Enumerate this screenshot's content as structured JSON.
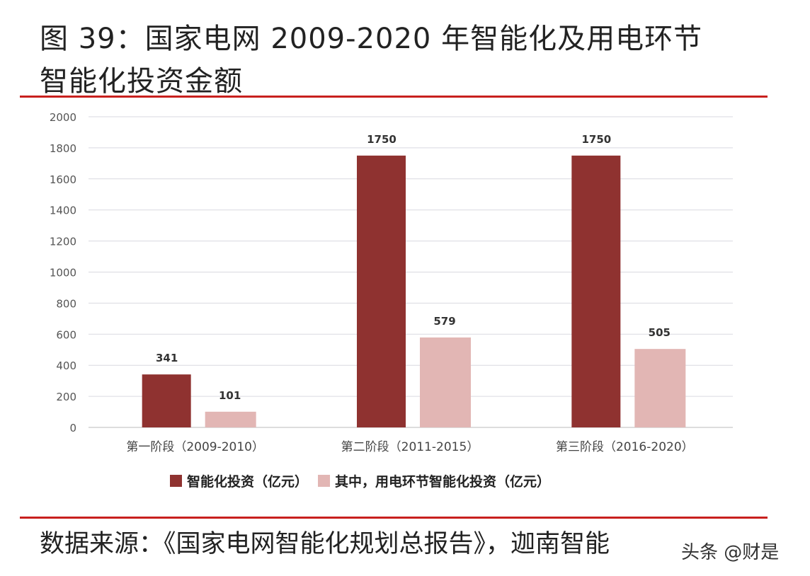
{
  "title_line1": "图 39：国家电网 2009-2020 年智能化及用电环节",
  "title_line2": "智能化投资金额",
  "source": "数据来源：《国家电网智能化规划总报告》，迦南智能",
  "watermark": "头条 @财是",
  "chart_data": {
    "type": "bar",
    "categories": [
      "第一阶段（2009-2010）",
      "第二阶段（2011-2015）",
      "第三阶段（2016-2020）"
    ],
    "series": [
      {
        "name": "智能化投资（亿元）",
        "values": [
          341,
          1750,
          1750
        ],
        "color": "#8f3230"
      },
      {
        "name": "其中，用电环节智能化投资（亿元）",
        "values": [
          101,
          579,
          505
        ],
        "color": "#e2b6b4"
      }
    ],
    "ylim": [
      0,
      2000
    ],
    "yticks": [
      0,
      200,
      400,
      600,
      800,
      1000,
      1200,
      1400,
      1600,
      1800,
      2000
    ],
    "grid": true,
    "legend": "bottom"
  }
}
